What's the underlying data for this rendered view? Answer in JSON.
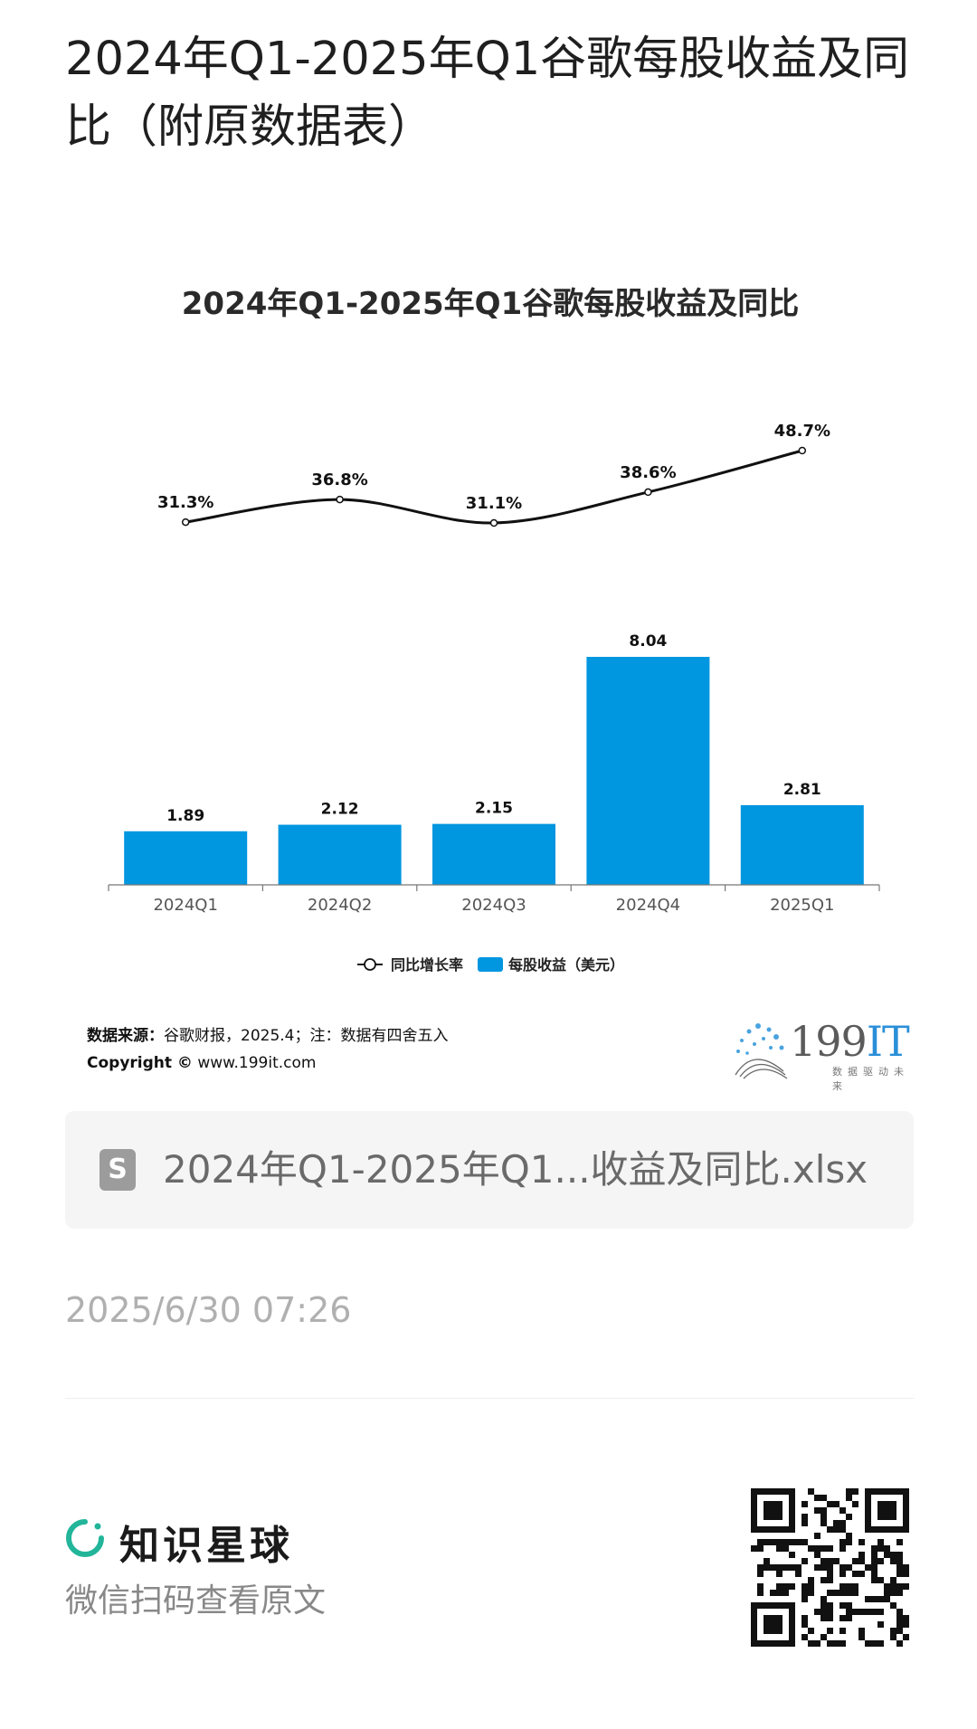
{
  "page": {
    "title": "2024年Q1-2025年Q1谷歌每股收益及同比（附原数据表）"
  },
  "chart_data": {
    "type": "bar",
    "title": "2024年Q1-2025年Q1谷歌每股收益及同比",
    "categories": [
      "2024Q1",
      "2024Q2",
      "2024Q3",
      "2024Q4",
      "2025Q1"
    ],
    "series": [
      {
        "name": "每股收益（美元）",
        "type": "bar",
        "values": [
          1.89,
          2.12,
          2.15,
          8.04,
          2.81
        ],
        "labels": [
          "1.89",
          "2.12",
          "2.15",
          "8.04",
          "2.81"
        ],
        "color": "#0096e0"
      },
      {
        "name": "同比增长率",
        "type": "line",
        "values": [
          31.3,
          36.8,
          31.1,
          38.6,
          48.7
        ],
        "labels": [
          "31.3%",
          "36.8%",
          "31.1%",
          "38.6%",
          "48.7%"
        ],
        "color": "#111111"
      }
    ],
    "legend": {
      "position": "bottom",
      "items": [
        "同比增长率",
        "每股收益（美元）"
      ]
    },
    "grid": false
  },
  "source": {
    "label": "数据来源：",
    "text": "谷歌财报，2025.4；注：数据有四舍五入",
    "copyright_label": "Copyright ©",
    "copyright_url": "www.199it.com"
  },
  "logo": {
    "main": "199",
    "it": "IT",
    "sub": "数据驱动未来"
  },
  "file": {
    "icon": "S",
    "name": "2024年Q1-2025年Q1...收益及同比.xlsx"
  },
  "timestamp": "2025/6/30 07:26",
  "footer": {
    "brand": "知识星球",
    "scan_text": "微信扫码查看原文",
    "brand_color": "#22b59a"
  }
}
